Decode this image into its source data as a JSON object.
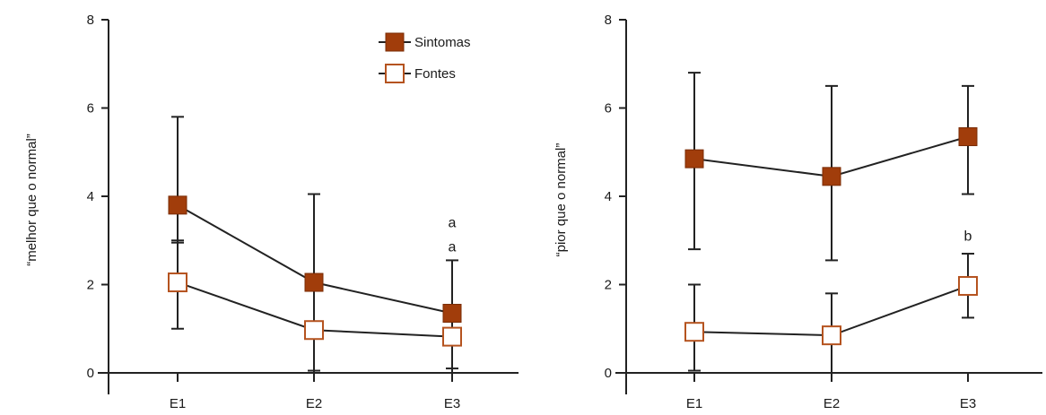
{
  "colors": {
    "sintomas_fill": "#a13d0b",
    "fontes_stroke": "#b5531f",
    "line": "#222222"
  },
  "chart_data": [
    {
      "type": "line",
      "title": "",
      "xlabel": "",
      "ylabel": "“melhor que o normal”",
      "categories": [
        "E1",
        "E2",
        "E3"
      ],
      "ylim": [
        0,
        8
      ],
      "yticks": [
        "0",
        "2",
        "4",
        "6",
        "8"
      ],
      "grid": false,
      "legend": "top-right",
      "series": [
        {
          "name": "Sintomas",
          "marker": "filled-square",
          "values": [
            3.8,
            2.05,
            1.35
          ],
          "err_low": [
            2.95,
            0.0,
            0.0
          ],
          "err_high": [
            5.8,
            4.05,
            2.55
          ]
        },
        {
          "name": "Fontes",
          "marker": "open-square",
          "values": [
            2.05,
            0.97,
            0.82
          ],
          "err_low": [
            1.0,
            0.05,
            0.1
          ],
          "err_high": [
            3.0,
            0.0,
            0.0
          ]
        }
      ],
      "annotations": [
        {
          "text": "a",
          "category": "E3",
          "y": 3.4
        },
        {
          "text": "a",
          "category": "E3",
          "y": 2.85
        }
      ]
    },
    {
      "type": "line",
      "title": "",
      "xlabel": "",
      "ylabel": "“pior que o normal”",
      "categories": [
        "E1",
        "E2",
        "E3"
      ],
      "ylim": [
        0,
        8
      ],
      "yticks": [
        "0",
        "2",
        "4",
        "6",
        "8"
      ],
      "grid": false,
      "legend": "none",
      "series": [
        {
          "name": "Sintomas",
          "marker": "filled-square",
          "values": [
            4.85,
            4.45,
            5.35
          ],
          "err_low": [
            2.8,
            2.55,
            4.05
          ],
          "err_high": [
            6.8,
            6.5,
            6.5
          ]
        },
        {
          "name": "Fontes",
          "marker": "open-square",
          "values": [
            0.93,
            0.85,
            1.97
          ],
          "err_low": [
            0.05,
            0.0,
            1.25
          ],
          "err_high": [
            2.0,
            1.8,
            2.7
          ]
        }
      ],
      "annotations": [
        {
          "text": "b",
          "category": "E3",
          "y": 3.1
        }
      ]
    }
  ]
}
